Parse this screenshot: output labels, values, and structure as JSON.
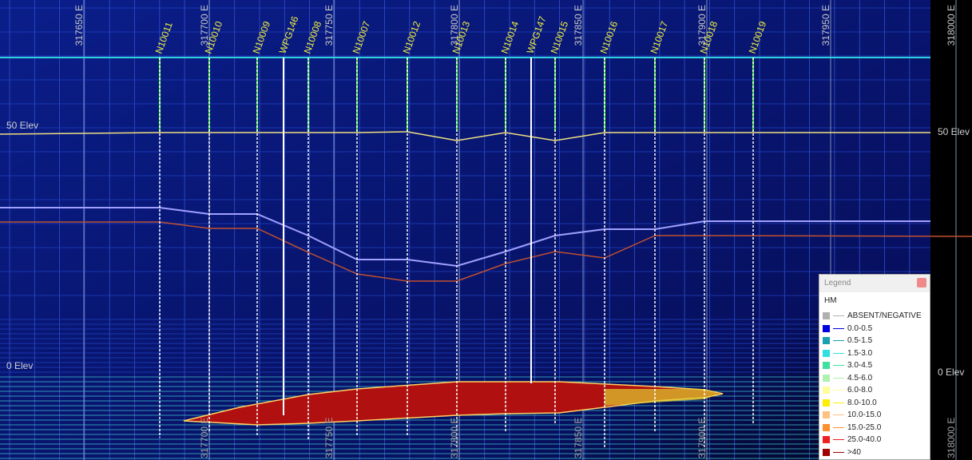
{
  "eastings": [
    "317650 E",
    "317700 E",
    "317750 E",
    "317800 E",
    "317850 E",
    "317900 E",
    "317950 E",
    "318000 E"
  ],
  "holes": [
    "N10011",
    "N10010",
    "N10009",
    "WPG146",
    "N10008",
    "N10007",
    "N10012",
    "N10013",
    "N10014",
    "WPG147",
    "N10015",
    "N10016",
    "N10017",
    "N10018",
    "N10019"
  ],
  "elevations": [
    "50 Elev",
    "0 Elev"
  ],
  "legend": {
    "title": "Legend",
    "field": "HM",
    "items": [
      {
        "label": "ABSENT/NEGATIVE",
        "color": "#b0b0b0"
      },
      {
        "label": "0.0-0.5",
        "color": "#0000e0"
      },
      {
        "label": "0.5-1.5",
        "color": "#1aa0b0"
      },
      {
        "label": "1.5-3.0",
        "color": "#30e0e0"
      },
      {
        "label": "3.0-4.5",
        "color": "#40e0a0"
      },
      {
        "label": "4.5-6.0",
        "color": "#b0f0b0"
      },
      {
        "label": "6.0-8.0",
        "color": "#ffff99"
      },
      {
        "label": "8.0-10.0",
        "color": "#ffee00"
      },
      {
        "label": "10.0-15.0",
        "color": "#ffc080"
      },
      {
        "label": "15.0-25.0",
        "color": "#ff9030"
      },
      {
        "label": "25.0-40.0",
        "color": "#ee2020"
      },
      {
        "label": ">40",
        "color": "#a00000"
      }
    ]
  }
}
